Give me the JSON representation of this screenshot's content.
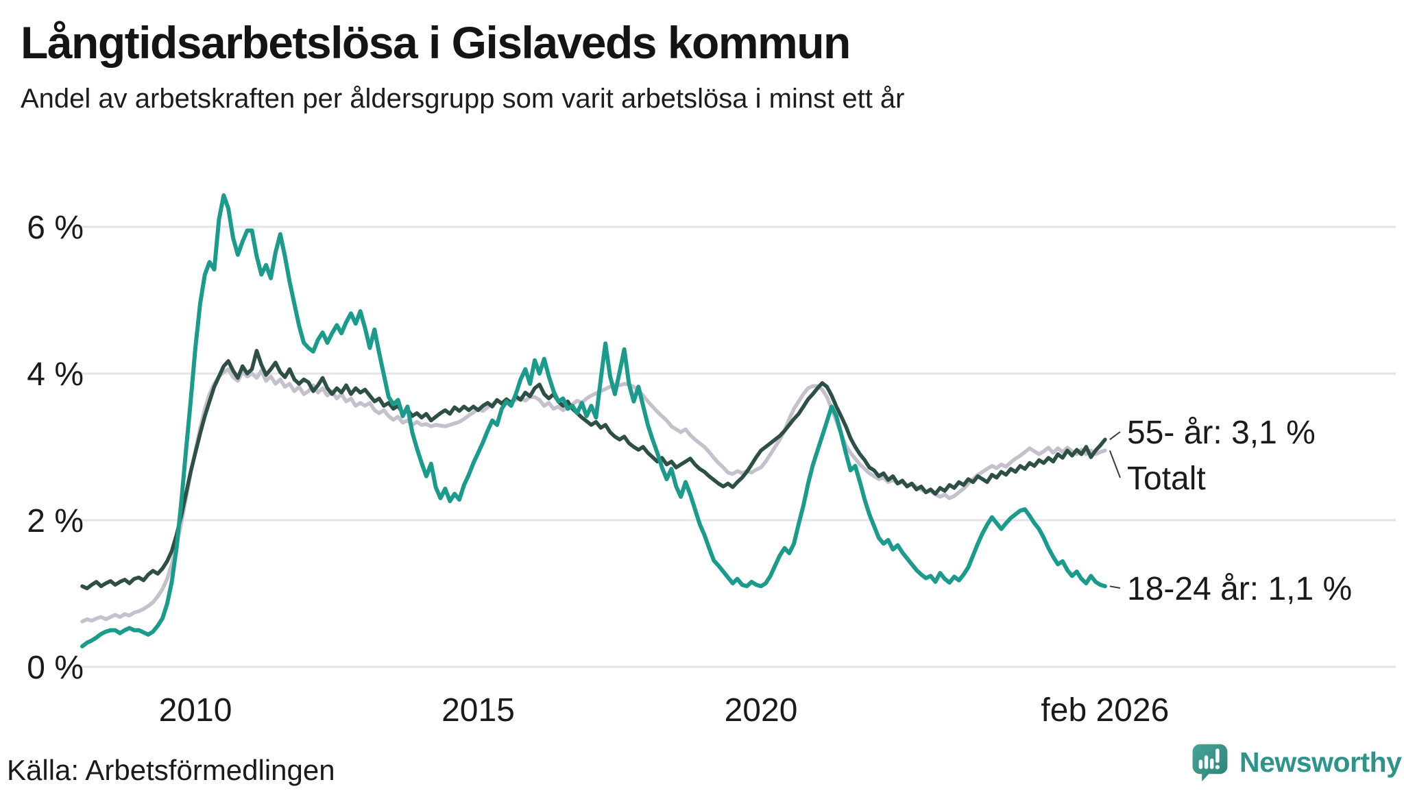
{
  "footer": {
    "source": "Källa: Arbetsförmedlingen",
    "brand": "Newsworthy"
  },
  "colors": {
    "teal_line": "#1A9B8C",
    "dark_line": "#2D4F46",
    "gray_line": "#C4C1CD",
    "grid": "#E4E3E8",
    "text": "#1A1A1A",
    "leader": "#3A3A3A",
    "brand_teal": "#2E948A",
    "logo_bubble_light": "#46A396",
    "logo_bubble_dark": "#2E8278"
  },
  "chart_data": {
    "type": "line",
    "title": "Långtidsarbetslösa i Gislaveds kommun",
    "subtitle": "Andel av arbetskraften per åldersgrupp som varit arbetslösa i minst ett år",
    "xlabel": "",
    "ylabel": "",
    "grid": "horizontal",
    "legend_position": "right-annotations",
    "x_start_year": 2008,
    "x_start_month": 1,
    "x_step": "month",
    "x_end_label_year": 2026.083,
    "xlim": [
      2007.9,
      2026.2
    ],
    "ylim": [
      0,
      6.7
    ],
    "y_ticks": [
      {
        "label": "0 %",
        "value": 0
      },
      {
        "label": "2 %",
        "value": 2
      },
      {
        "label": "4 %",
        "value": 4
      },
      {
        "label": "6 %",
        "value": 6
      }
    ],
    "x_ticks": [
      {
        "label": "2010",
        "year": 2010.0
      },
      {
        "label": "2015",
        "year": 2015.0
      },
      {
        "label": "2020",
        "year": 2020.0
      },
      {
        "label": "feb 2026",
        "year": 2026.083
      }
    ],
    "series": [
      {
        "name": "Totalt",
        "color": "#C4C1CD",
        "width": 5.5,
        "end_label": "Totalt",
        "end_value": 3.0,
        "values": [
          0.62,
          0.65,
          0.63,
          0.66,
          0.68,
          0.65,
          0.68,
          0.71,
          0.68,
          0.72,
          0.7,
          0.74,
          0.76,
          0.79,
          0.83,
          0.88,
          0.96,
          1.06,
          1.2,
          1.4,
          1.65,
          1.96,
          2.3,
          2.64,
          2.95,
          3.25,
          3.52,
          3.72,
          3.86,
          3.96,
          4.02,
          4.06,
          3.95,
          3.9,
          4.02,
          3.96,
          4.0,
          3.94,
          4.04,
          3.9,
          3.96,
          3.86,
          3.92,
          3.82,
          3.86,
          3.76,
          3.82,
          3.72,
          3.76,
          3.84,
          3.74,
          3.8,
          3.7,
          3.76,
          3.66,
          3.72,
          3.62,
          3.66,
          3.56,
          3.6,
          3.56,
          3.6,
          3.5,
          3.46,
          3.5,
          3.42,
          3.37,
          3.41,
          3.33,
          3.36,
          3.3,
          3.34,
          3.3,
          3.31,
          3.28,
          3.3,
          3.29,
          3.28,
          3.3,
          3.32,
          3.34,
          3.38,
          3.43,
          3.47,
          3.52,
          3.49,
          3.54,
          3.58,
          3.63,
          3.6,
          3.64,
          3.61,
          3.64,
          3.67,
          3.63,
          3.68,
          3.68,
          3.64,
          3.56,
          3.6,
          3.52,
          3.55,
          3.5,
          3.54,
          3.58,
          3.63,
          3.6,
          3.66,
          3.7,
          3.73,
          3.76,
          3.79,
          3.82,
          3.85,
          3.84,
          3.86,
          3.85,
          3.82,
          3.77,
          3.7,
          3.62,
          3.55,
          3.48,
          3.42,
          3.36,
          3.28,
          3.24,
          3.2,
          3.24,
          3.16,
          3.1,
          3.05,
          3.0,
          2.93,
          2.85,
          2.78,
          2.72,
          2.65,
          2.63,
          2.67,
          2.64,
          2.67,
          2.65,
          2.69,
          2.72,
          2.8,
          2.9,
          3.0,
          3.1,
          3.22,
          3.38,
          3.52,
          3.62,
          3.72,
          3.8,
          3.83,
          3.83,
          3.78,
          3.68,
          3.52,
          3.35,
          3.18,
          3.02,
          2.92,
          2.84,
          2.76,
          2.7,
          2.64,
          2.6,
          2.56,
          2.58,
          2.52,
          2.55,
          2.5,
          2.52,
          2.47,
          2.5,
          2.45,
          2.42,
          2.38,
          2.4,
          2.35,
          2.32,
          2.35,
          2.3,
          2.33,
          2.38,
          2.43,
          2.5,
          2.56,
          2.62,
          2.66,
          2.7,
          2.74,
          2.71,
          2.76,
          2.73,
          2.79,
          2.84,
          2.88,
          2.93,
          2.98,
          2.94,
          2.9,
          2.94,
          2.99,
          2.92,
          2.98,
          2.93,
          2.99,
          2.94,
          2.9,
          2.96,
          2.9,
          2.95,
          2.9,
          2.93,
          2.95
        ]
      },
      {
        "name": "55- år",
        "color": "#2D4F46",
        "width": 5.5,
        "end_label": "55- år: 3,1 %",
        "end_value": 3.1,
        "values": [
          1.1,
          1.07,
          1.12,
          1.16,
          1.1,
          1.14,
          1.17,
          1.12,
          1.16,
          1.19,
          1.14,
          1.2,
          1.22,
          1.18,
          1.26,
          1.31,
          1.27,
          1.34,
          1.44,
          1.58,
          1.8,
          2.06,
          2.36,
          2.66,
          2.92,
          3.18,
          3.42,
          3.62,
          3.82,
          3.96,
          4.1,
          4.17,
          4.04,
          3.94,
          4.1,
          4.0,
          4.06,
          4.31,
          4.12,
          3.98,
          4.06,
          4.15,
          4.02,
          3.95,
          4.06,
          3.92,
          3.86,
          3.92,
          3.88,
          3.76,
          3.84,
          3.94,
          3.8,
          3.72,
          3.8,
          3.74,
          3.84,
          3.72,
          3.8,
          3.74,
          3.78,
          3.7,
          3.62,
          3.66,
          3.56,
          3.6,
          3.52,
          3.56,
          3.46,
          3.51,
          3.42,
          3.46,
          3.4,
          3.45,
          3.36,
          3.41,
          3.46,
          3.5,
          3.45,
          3.54,
          3.49,
          3.55,
          3.5,
          3.55,
          3.5,
          3.56,
          3.6,
          3.55,
          3.64,
          3.59,
          3.65,
          3.6,
          3.69,
          3.64,
          3.74,
          3.69,
          3.8,
          3.85,
          3.72,
          3.66,
          3.72,
          3.62,
          3.56,
          3.62,
          3.52,
          3.46,
          3.4,
          3.35,
          3.3,
          3.34,
          3.26,
          3.3,
          3.2,
          3.14,
          3.1,
          3.14,
          3.05,
          3.0,
          2.96,
          3.0,
          2.92,
          2.86,
          2.8,
          2.85,
          2.76,
          2.8,
          2.72,
          2.76,
          2.8,
          2.84,
          2.76,
          2.7,
          2.66,
          2.6,
          2.55,
          2.5,
          2.46,
          2.5,
          2.45,
          2.52,
          2.58,
          2.66,
          2.76,
          2.86,
          2.95,
          3.0,
          3.05,
          3.1,
          3.15,
          3.22,
          3.3,
          3.38,
          3.45,
          3.55,
          3.65,
          3.72,
          3.8,
          3.87,
          3.82,
          3.7,
          3.55,
          3.42,
          3.28,
          3.12,
          3.0,
          2.9,
          2.82,
          2.72,
          2.68,
          2.6,
          2.64,
          2.55,
          2.6,
          2.5,
          2.54,
          2.46,
          2.5,
          2.42,
          2.46,
          2.38,
          2.42,
          2.36,
          2.44,
          2.4,
          2.48,
          2.44,
          2.52,
          2.48,
          2.56,
          2.52,
          2.6,
          2.56,
          2.52,
          2.62,
          2.58,
          2.66,
          2.62,
          2.7,
          2.66,
          2.74,
          2.7,
          2.78,
          2.74,
          2.82,
          2.78,
          2.85,
          2.8,
          2.9,
          2.85,
          2.95,
          2.88,
          2.96,
          2.9,
          3.0,
          2.86,
          2.95,
          3.02,
          3.1
        ]
      },
      {
        "name": "18-24 år",
        "color": "#1A9B8C",
        "width": 6,
        "end_label": "18-24 år: 1,1 %",
        "end_value": 1.1,
        "values": [
          0.28,
          0.33,
          0.36,
          0.4,
          0.45,
          0.48,
          0.5,
          0.5,
          0.46,
          0.5,
          0.53,
          0.5,
          0.5,
          0.47,
          0.44,
          0.48,
          0.56,
          0.66,
          0.86,
          1.16,
          1.62,
          2.24,
          2.95,
          3.62,
          4.35,
          4.95,
          5.35,
          5.52,
          5.42,
          6.1,
          6.43,
          6.25,
          5.85,
          5.62,
          5.8,
          5.95,
          5.95,
          5.6,
          5.35,
          5.48,
          5.3,
          5.65,
          5.9,
          5.6,
          5.25,
          4.95,
          4.65,
          4.42,
          4.35,
          4.3,
          4.46,
          4.56,
          4.42,
          4.55,
          4.66,
          4.55,
          4.7,
          4.82,
          4.68,
          4.85,
          4.62,
          4.35,
          4.6,
          4.28,
          3.98,
          3.68,
          3.58,
          3.64,
          3.42,
          3.55,
          3.2,
          2.98,
          2.78,
          2.6,
          2.77,
          2.45,
          2.3,
          2.43,
          2.26,
          2.36,
          2.28,
          2.48,
          2.62,
          2.78,
          2.92,
          3.06,
          3.22,
          3.36,
          3.3,
          3.52,
          3.62,
          3.56,
          3.72,
          3.92,
          4.06,
          3.86,
          4.18,
          4.0,
          4.2,
          3.96,
          3.76,
          3.62,
          3.66,
          3.52,
          3.56,
          3.46,
          3.6,
          3.42,
          3.56,
          3.4,
          3.92,
          4.41,
          3.96,
          3.72,
          4.02,
          4.33,
          3.86,
          3.62,
          3.82,
          3.56,
          3.3,
          3.1,
          2.92,
          2.72,
          2.56,
          2.7,
          2.46,
          2.32,
          2.52,
          2.35,
          2.15,
          1.95,
          1.8,
          1.62,
          1.45,
          1.38,
          1.3,
          1.22,
          1.14,
          1.2,
          1.12,
          1.1,
          1.16,
          1.12,
          1.1,
          1.14,
          1.24,
          1.38,
          1.52,
          1.62,
          1.55,
          1.68,
          1.95,
          2.2,
          2.5,
          2.75,
          2.95,
          3.15,
          3.35,
          3.55,
          3.42,
          3.18,
          2.92,
          2.68,
          2.74,
          2.52,
          2.28,
          2.08,
          1.92,
          1.76,
          1.68,
          1.73,
          1.6,
          1.66,
          1.56,
          1.48,
          1.4,
          1.32,
          1.26,
          1.21,
          1.24,
          1.16,
          1.28,
          1.2,
          1.15,
          1.23,
          1.18,
          1.26,
          1.36,
          1.52,
          1.68,
          1.82,
          1.94,
          2.04,
          1.96,
          1.88,
          1.96,
          2.03,
          2.08,
          2.13,
          2.15,
          2.06,
          1.96,
          1.88,
          1.76,
          1.62,
          1.5,
          1.4,
          1.44,
          1.32,
          1.24,
          1.3,
          1.2,
          1.14,
          1.24,
          1.16,
          1.12,
          1.1
        ]
      }
    ]
  }
}
